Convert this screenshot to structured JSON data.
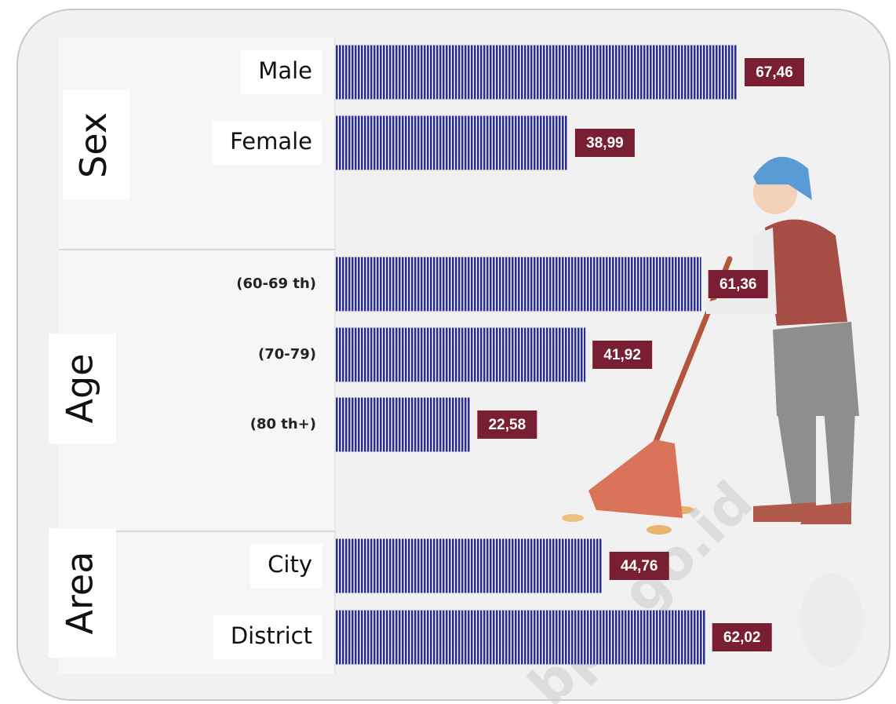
{
  "chart_data": {
    "type": "bar",
    "color": "#2b2f8f",
    "label_color": "#7a1f33",
    "watermark": "bps.go.id",
    "groups": [
      {
        "name": "Sex",
        "categories": [
          "Male",
          "Female"
        ],
        "values": [
          67.46,
          38.99
        ],
        "value_labels": [
          "67,46",
          "38,99"
        ]
      },
      {
        "name": "Age",
        "categories": [
          "(60-69 th)",
          "(70-79)",
          "(80 th+)"
        ],
        "values": [
          61.36,
          41.92,
          22.58
        ],
        "value_labels": [
          "61,36",
          "41,92",
          "22,58"
        ]
      },
      {
        "name": "Area",
        "categories": [
          "City",
          "District"
        ],
        "values": [
          44.76,
          62.02
        ],
        "value_labels": [
          "44,76",
          "62,02"
        ]
      }
    ]
  }
}
